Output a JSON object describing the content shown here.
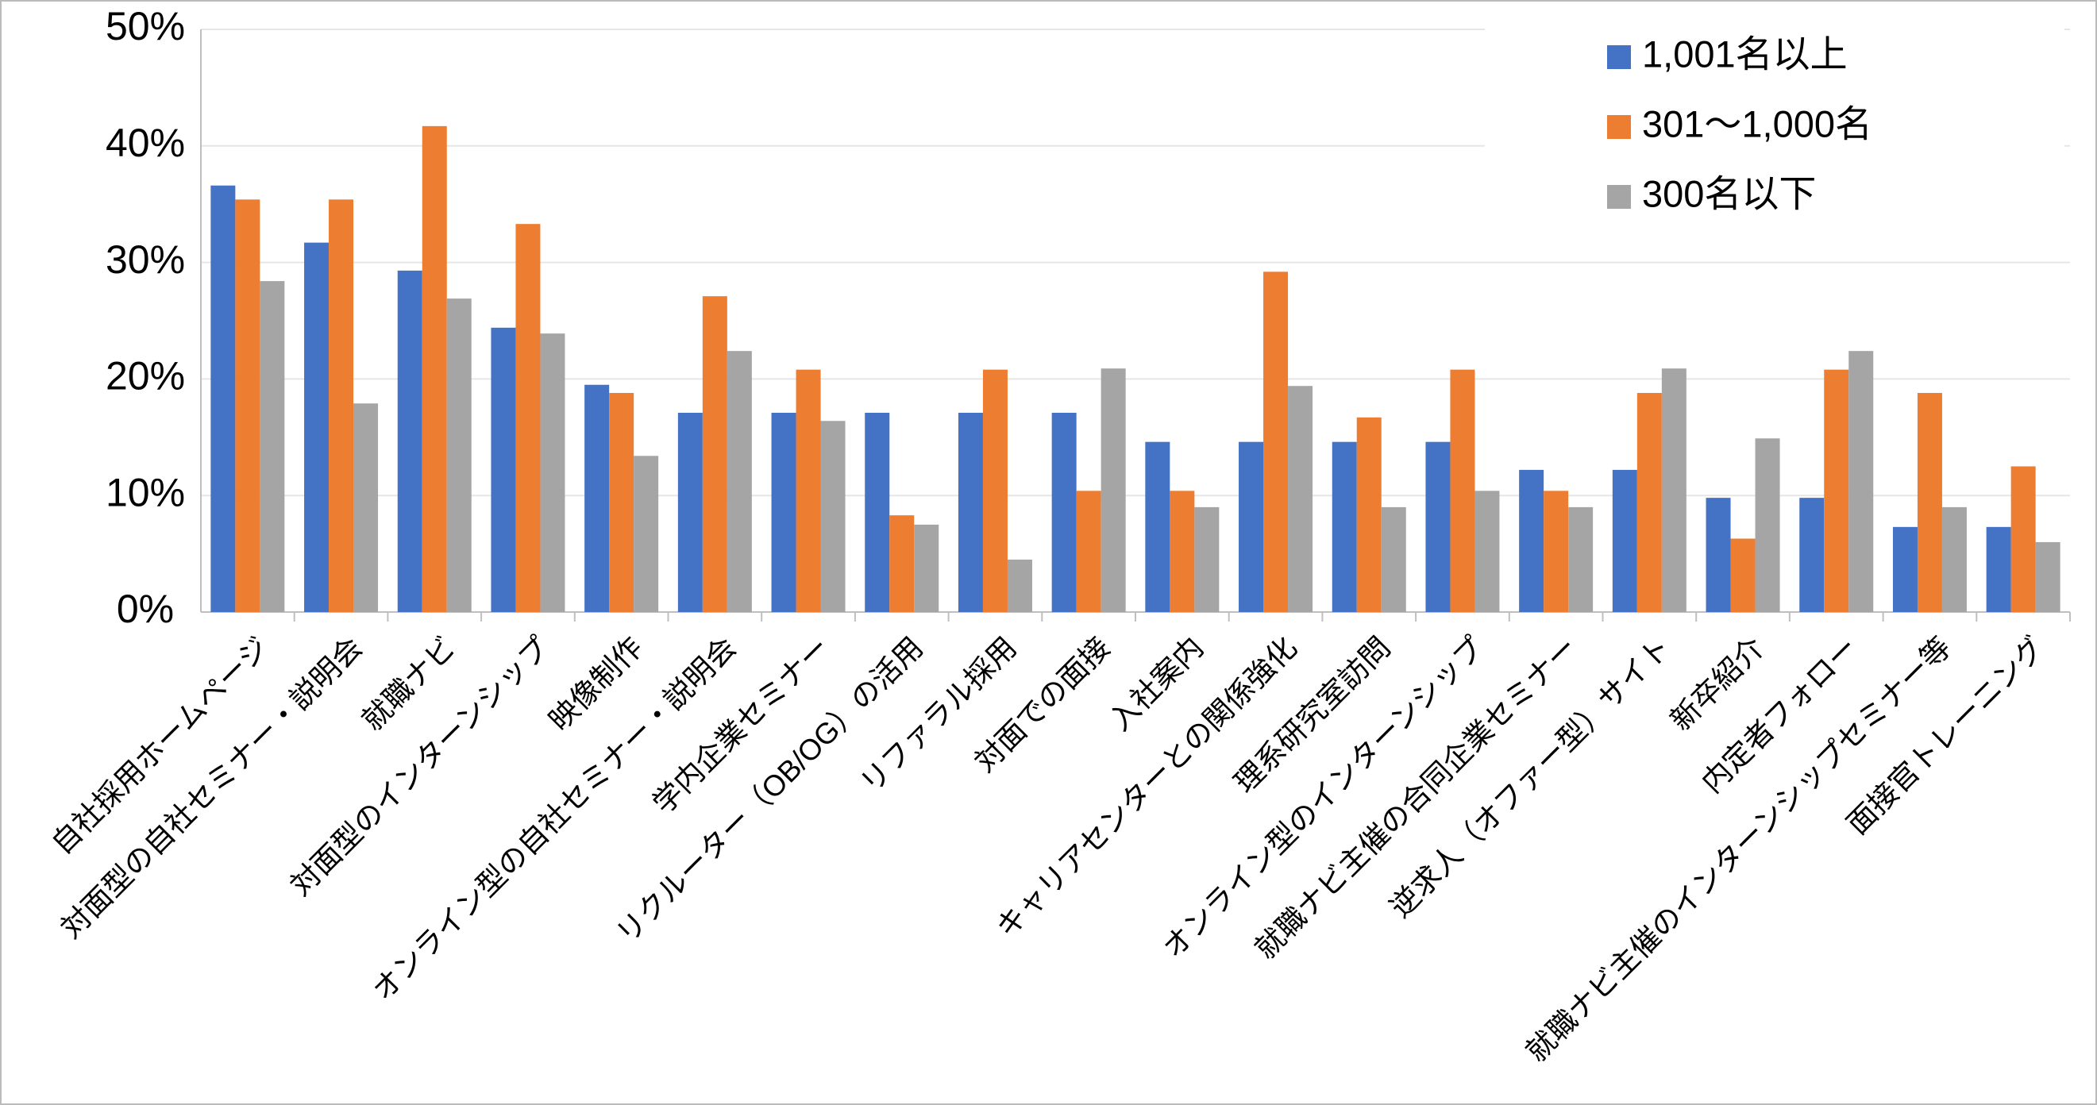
{
  "chart_data": {
    "type": "bar",
    "categories": [
      "自社採用ホームページ",
      "対面型の自社セミナー・説明会",
      "就職ナビ",
      "対面型のインターンシップ",
      "映像制作",
      "オンライン型の自社セミナー・説明会",
      "学内企業セミナー",
      "リクルーター（OB/OG）の活用",
      "リファラル採用",
      "対面での面接",
      "入社案内",
      "キャリアセンターとの関係強化",
      "理系研究室訪問",
      "オンライン型のインターンシップ",
      "就職ナビ主催の合同企業セミナー",
      "逆求人（オファー型）サイト",
      "新卒紹介",
      "内定者フォロー",
      "就職ナビ主催のインターンシップセミナー等",
      "面接官トレーニング"
    ],
    "series": [
      {
        "name": "1,001名以上",
        "color": "#4472c4",
        "values": [
          36.6,
          31.7,
          29.3,
          24.4,
          19.5,
          17.1,
          17.1,
          17.1,
          17.1,
          17.1,
          14.6,
          14.6,
          14.6,
          14.6,
          12.2,
          12.2,
          9.8,
          9.8,
          7.3,
          7.3
        ]
      },
      {
        "name": "301～1,000名",
        "color": "#ed7d31",
        "values": [
          35.4,
          35.4,
          41.7,
          33.3,
          18.8,
          27.1,
          20.8,
          8.3,
          20.8,
          10.4,
          10.4,
          29.2,
          16.7,
          20.8,
          10.4,
          18.8,
          6.3,
          20.8,
          18.8,
          12.5
        ]
      },
      {
        "name": "300名以下",
        "color": "#a5a5a5",
        "values": [
          28.4,
          17.9,
          26.9,
          23.9,
          13.4,
          22.4,
          16.4,
          7.5,
          4.5,
          20.9,
          9.0,
          19.4,
          9.0,
          10.4,
          9.0,
          20.9,
          14.9,
          22.4,
          9.0,
          6.0
        ]
      }
    ],
    "ylim": [
      0,
      50
    ],
    "yticks": [
      {
        "value": 0,
        "label": "0%"
      },
      {
        "value": 10,
        "label": "10%"
      },
      {
        "value": 20,
        "label": "20%"
      },
      {
        "value": 30,
        "label": "30%"
      },
      {
        "value": 40,
        "label": "40%"
      },
      {
        "value": 50,
        "label": "50%"
      }
    ],
    "grid": true,
    "legend": "upper right"
  }
}
